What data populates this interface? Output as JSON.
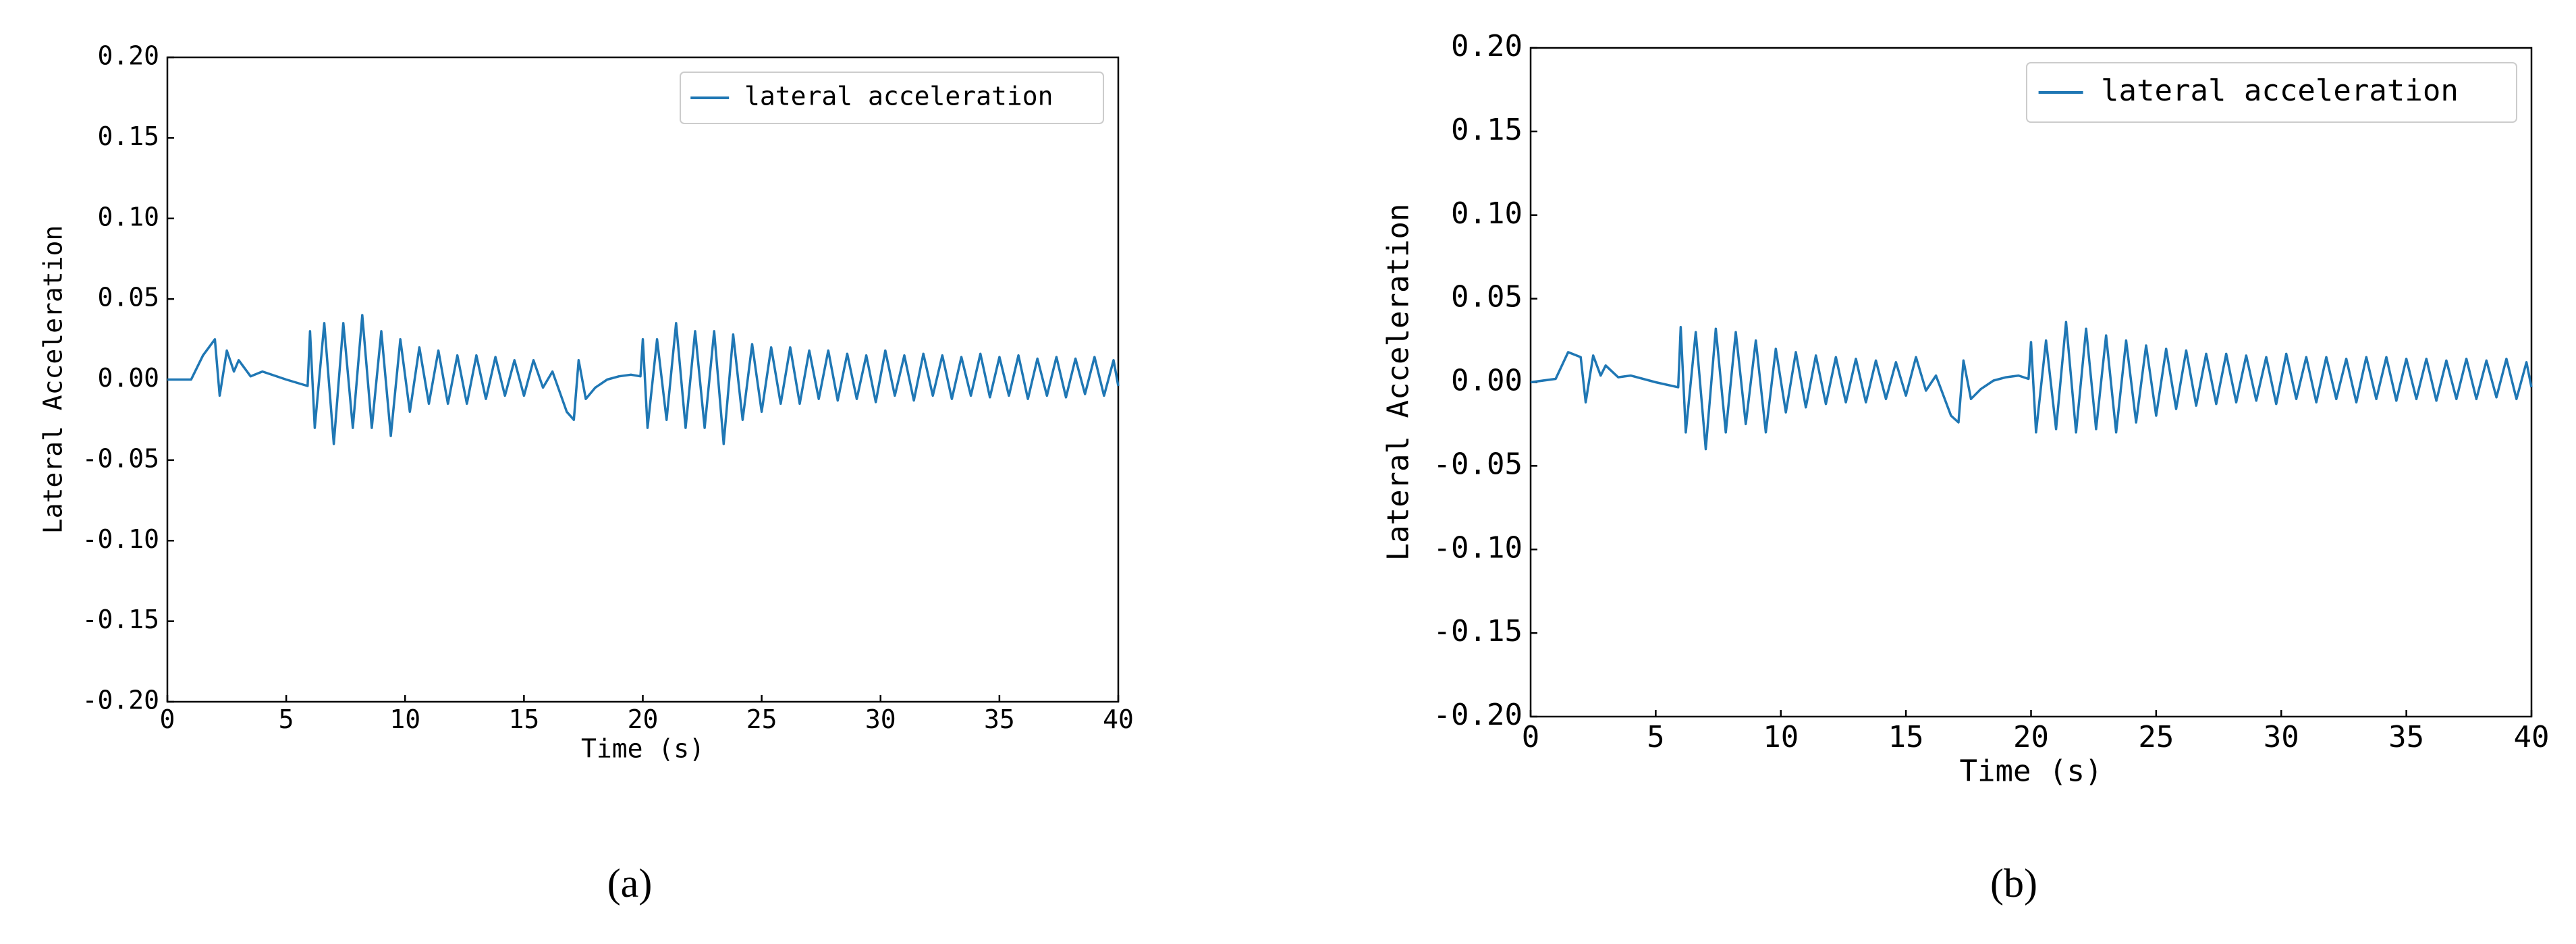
{
  "chart_data": [
    {
      "type": "line",
      "caption": "(a)",
      "xlabel": "Time (s)",
      "ylabel": "Lateral Acceleration",
      "legend": "upper right",
      "xlim": [
        0,
        40
      ],
      "ylim": [
        -0.2,
        0.2
      ],
      "xticks": [
        0,
        5,
        10,
        15,
        20,
        25,
        30,
        35,
        40
      ],
      "yticks": [
        {
          "value": -0.2,
          "label": "-0.20"
        },
        {
          "value": -0.15,
          "label": "-0.15"
        },
        {
          "value": -0.1,
          "label": "-0.10"
        },
        {
          "value": -0.05,
          "label": "-0.05"
        },
        {
          "value": 0,
          "label": "0.00"
        },
        {
          "value": 0.05,
          "label": "0.05"
        },
        {
          "value": 0.1,
          "label": "0.10"
        },
        {
          "value": 0.15,
          "label": "0.15"
        },
        {
          "value": 0.2,
          "label": "0.20"
        }
      ],
      "x": [
        0,
        1,
        1.5,
        2,
        2.2,
        2.5,
        2.8,
        3,
        3.5,
        4,
        5,
        5.9,
        6.0,
        6.2,
        6.6,
        7.0,
        7.4,
        7.8,
        8.2,
        8.6,
        9.0,
        9.4,
        9.8,
        10.2,
        10.6,
        11.0,
        11.4,
        11.8,
        12.2,
        12.6,
        13.0,
        13.4,
        13.8,
        14.2,
        14.6,
        15.0,
        15.4,
        15.8,
        16.2,
        16.8,
        17.1,
        17.3,
        17.6,
        18,
        18.5,
        19,
        19.5,
        19.9,
        20.0,
        20.2,
        20.6,
        21.0,
        21.4,
        21.8,
        22.2,
        22.6,
        23.0,
        23.4,
        23.8,
        24.2,
        24.6,
        25.0,
        25.4,
        25.8,
        26.2,
        26.6,
        27.0,
        27.4,
        27.8,
        28.2,
        28.6,
        29.0,
        29.4,
        29.8,
        30.2,
        30.6,
        31.0,
        31.4,
        31.8,
        32.2,
        32.6,
        33.0,
        33.4,
        33.8,
        34.2,
        34.6,
        35.0,
        35.4,
        35.8,
        36.2,
        36.6,
        37.0,
        37.4,
        37.8,
        38.2,
        38.6,
        39.0,
        39.4,
        39.8,
        40
      ],
      "series": [
        {
          "name": "lateral acceleration",
          "color": "#1f77b4",
          "values": [
            0,
            0,
            0.015,
            0.025,
            -0.01,
            0.018,
            0.005,
            0.012,
            0.002,
            0.005,
            0,
            -0.004,
            0.03,
            -0.03,
            0.035,
            -0.04,
            0.035,
            -0.03,
            0.04,
            -0.03,
            0.03,
            -0.035,
            0.025,
            -0.02,
            0.02,
            -0.015,
            0.018,
            -0.015,
            0.015,
            -0.015,
            0.015,
            -0.012,
            0.014,
            -0.01,
            0.012,
            -0.01,
            0.012,
            -0.005,
            0.005,
            -0.02,
            -0.025,
            0.012,
            -0.012,
            -0.005,
            0,
            0.002,
            0.003,
            0.002,
            0.025,
            -0.03,
            0.025,
            -0.025,
            0.035,
            -0.03,
            0.03,
            -0.03,
            0.03,
            -0.04,
            0.028,
            -0.025,
            0.022,
            -0.02,
            0.02,
            -0.015,
            0.02,
            -0.015,
            0.018,
            -0.012,
            0.018,
            -0.013,
            0.016,
            -0.012,
            0.015,
            -0.014,
            0.018,
            -0.01,
            0.015,
            -0.013,
            0.016,
            -0.01,
            0.015,
            -0.012,
            0.014,
            -0.01,
            0.016,
            -0.011,
            0.014,
            -0.01,
            0.015,
            -0.012,
            0.013,
            -0.01,
            0.014,
            -0.011,
            0.013,
            -0.009,
            0.014,
            -0.01,
            0.012,
            -0.004
          ]
        }
      ]
    },
    {
      "type": "line",
      "caption": "(b)",
      "xlabel": "Time (s)",
      "ylabel": "Lateral Acceleration",
      "legend": "upper right",
      "xlim": [
        0,
        40
      ],
      "ylim": [
        -0.2,
        0.2
      ],
      "xticks": [
        0,
        5,
        10,
        15,
        20,
        25,
        30,
        35,
        40
      ],
      "yticks": [
        {
          "value": -0.2,
          "label": "-0.20"
        },
        {
          "value": -0.15,
          "label": "-0.15"
        },
        {
          "value": -0.1,
          "label": "-0.10"
        },
        {
          "value": -0.05,
          "label": "-0.05"
        },
        {
          "value": 0,
          "label": "0.00"
        },
        {
          "value": 0.05,
          "label": "0.05"
        },
        {
          "value": 0.1,
          "label": "0.10"
        },
        {
          "value": 0.15,
          "label": "0.15"
        },
        {
          "value": 0.2,
          "label": "0.20"
        }
      ],
      "x": [
        0,
        1,
        1.5,
        2,
        2.2,
        2.5,
        2.8,
        3,
        3.5,
        4,
        5,
        5.9,
        6.0,
        6.2,
        6.6,
        7.0,
        7.4,
        7.8,
        8.2,
        8.6,
        9.0,
        9.4,
        9.8,
        10.2,
        10.6,
        11.0,
        11.4,
        11.8,
        12.2,
        12.6,
        13.0,
        13.4,
        13.8,
        14.2,
        14.6,
        15.0,
        15.4,
        15.8,
        16.2,
        16.8,
        17.1,
        17.3,
        17.6,
        18,
        18.5,
        19,
        19.5,
        19.9,
        20.0,
        20.2,
        20.6,
        21.0,
        21.4,
        21.8,
        22.2,
        22.6,
        23.0,
        23.4,
        23.8,
        24.2,
        24.6,
        25.0,
        25.4,
        25.8,
        26.2,
        26.6,
        27.0,
        27.4,
        27.8,
        28.2,
        28.6,
        29.0,
        29.4,
        29.8,
        30.2,
        30.6,
        31.0,
        31.4,
        31.8,
        32.2,
        32.6,
        33.0,
        33.4,
        33.8,
        34.2,
        34.6,
        35.0,
        35.4,
        35.8,
        36.2,
        36.6,
        37.0,
        37.4,
        37.8,
        38.2,
        38.6,
        39.0,
        39.4,
        39.8,
        40
      ],
      "series": [
        {
          "name": "lateral acceleration",
          "color": "#1f77b4",
          "values": [
            0,
            0.002,
            0.018,
            0.015,
            -0.012,
            0.016,
            0.004,
            0.01,
            0.003,
            0.004,
            0,
            -0.003,
            0.033,
            -0.03,
            0.03,
            -0.04,
            0.032,
            -0.03,
            0.03,
            -0.025,
            0.025,
            -0.03,
            0.02,
            -0.018,
            0.018,
            -0.015,
            0.016,
            -0.013,
            0.015,
            -0.012,
            0.014,
            -0.012,
            0.013,
            -0.01,
            0.012,
            -0.008,
            0.015,
            -0.005,
            0.004,
            -0.02,
            -0.024,
            0.013,
            -0.01,
            -0.004,
            0.001,
            0.003,
            0.004,
            0.002,
            0.024,
            -0.03,
            0.025,
            -0.028,
            0.036,
            -0.03,
            0.032,
            -0.028,
            0.028,
            -0.03,
            0.025,
            -0.024,
            0.022,
            -0.02,
            0.02,
            -0.016,
            0.019,
            -0.014,
            0.017,
            -0.013,
            0.017,
            -0.012,
            0.016,
            -0.011,
            0.015,
            -0.013,
            0.017,
            -0.01,
            0.015,
            -0.012,
            0.015,
            -0.01,
            0.014,
            -0.012,
            0.015,
            -0.01,
            0.015,
            -0.011,
            0.014,
            -0.01,
            0.014,
            -0.011,
            0.013,
            -0.01,
            0.014,
            -0.01,
            0.013,
            -0.009,
            0.014,
            -0.01,
            0.012,
            -0.003
          ]
        }
      ]
    }
  ]
}
